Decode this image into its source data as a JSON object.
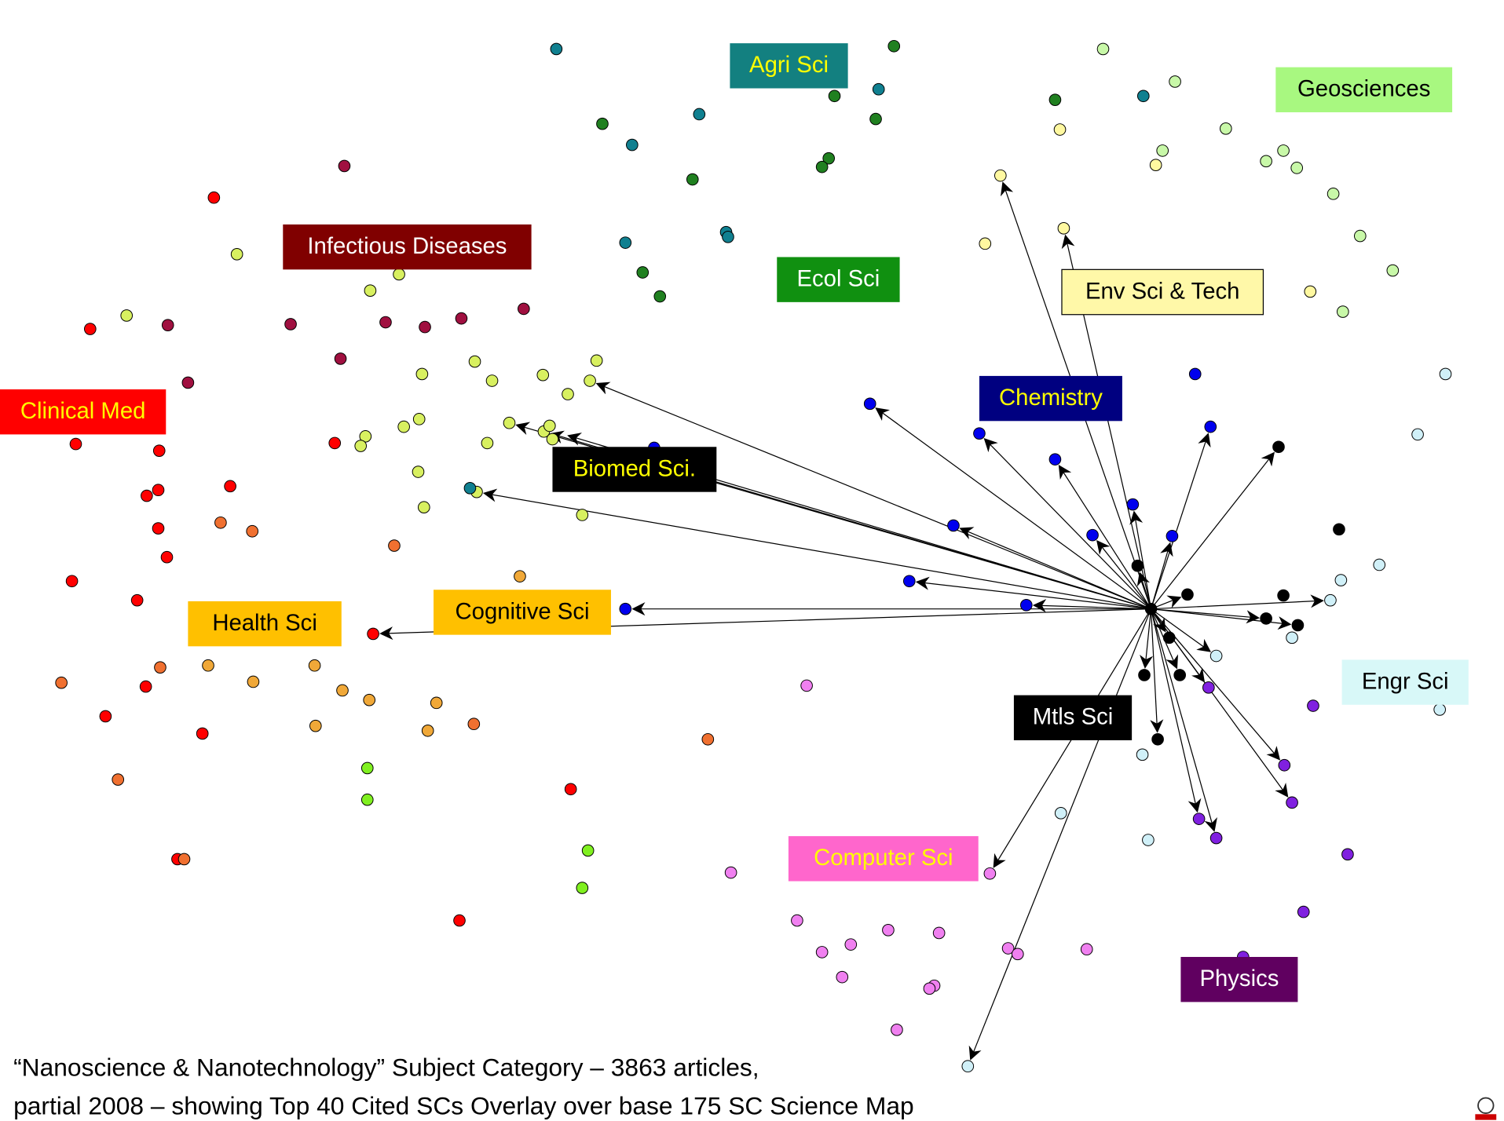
{
  "labels": [
    "Agri Sci",
    "Geosciences",
    "Infectious Diseases",
    "Ecol Sci",
    "Env Sci & Tech",
    "Chemistry",
    "Clinical Med",
    "Biomed Sci.",
    "Cognitive Sci",
    "Health Sci",
    "Engr Sci",
    "Mtls Sci",
    "Computer Sci",
    "Physics"
  ],
  "caption": [
    "“Nanoscience & Nanotechnology” Subject Category – 3863 articles,",
    "partial 2008 – showing Top 40 Cited SCs Overlay over base 175 SC Science Map"
  ]
}
